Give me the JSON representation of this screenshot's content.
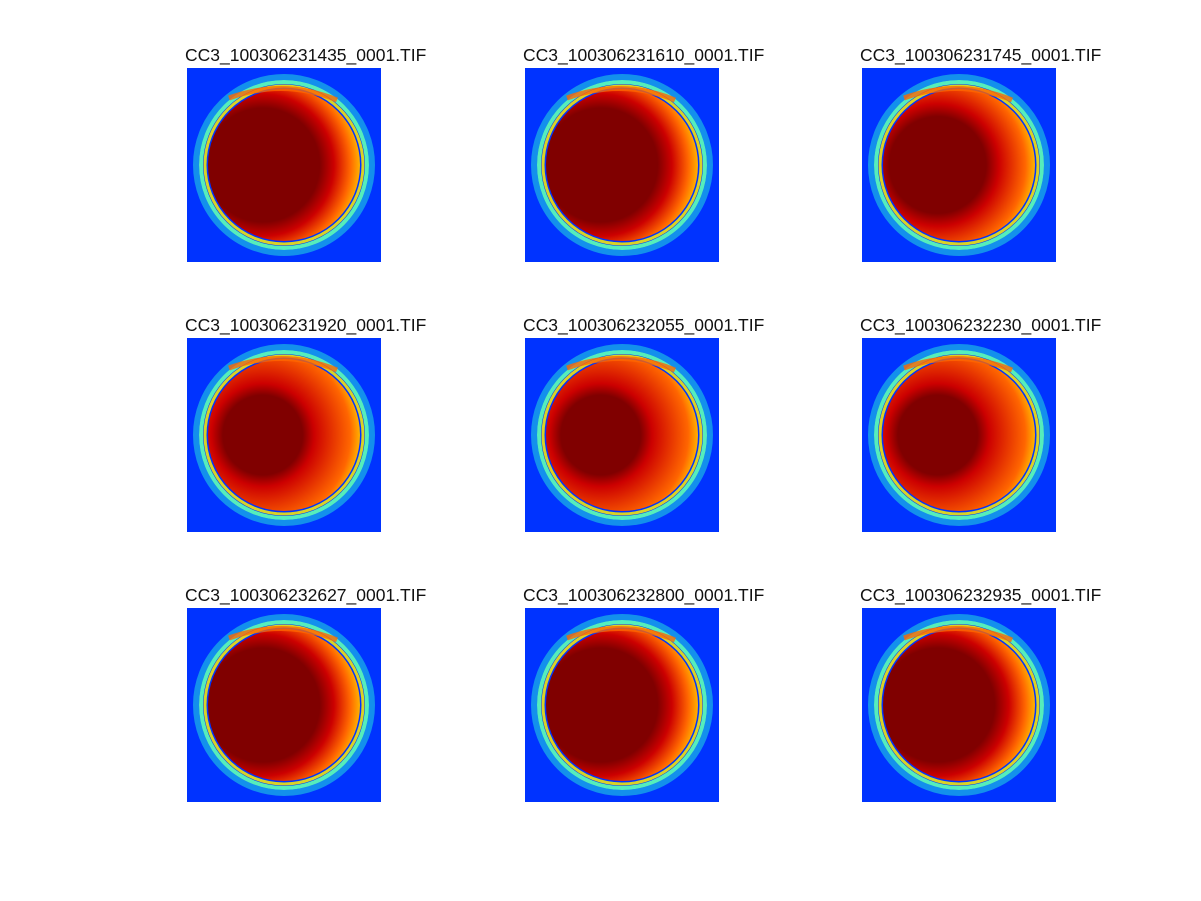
{
  "panels": [
    {
      "title": "CC3_100306231435_0001.TIF",
      "variant": "bright"
    },
    {
      "title": "CC3_100306231610_0001.TIF",
      "variant": "bright"
    },
    {
      "title": "CC3_100306231745_0001.TIF",
      "variant": "mid"
    },
    {
      "title": "CC3_100306231920_0001.TIF",
      "variant": "dim"
    },
    {
      "title": "CC3_100306232055_0001.TIF",
      "variant": "dim"
    },
    {
      "title": "CC3_100306232230_0001.TIF",
      "variant": "dim"
    },
    {
      "title": "CC3_100306232627_0001.TIF",
      "variant": "bright"
    },
    {
      "title": "CC3_100306232800_0001.TIF",
      "variant": "bright"
    },
    {
      "title": "CC3_100306232935_0001.TIF",
      "variant": "bright"
    }
  ],
  "colors": {
    "background": "#0033ff",
    "core": "#800000",
    "hot": "#cc0000",
    "warm": "#ff6600",
    "yellow": "#ffee00",
    "cyan": "#22dddd",
    "ring": "#55eebb"
  }
}
